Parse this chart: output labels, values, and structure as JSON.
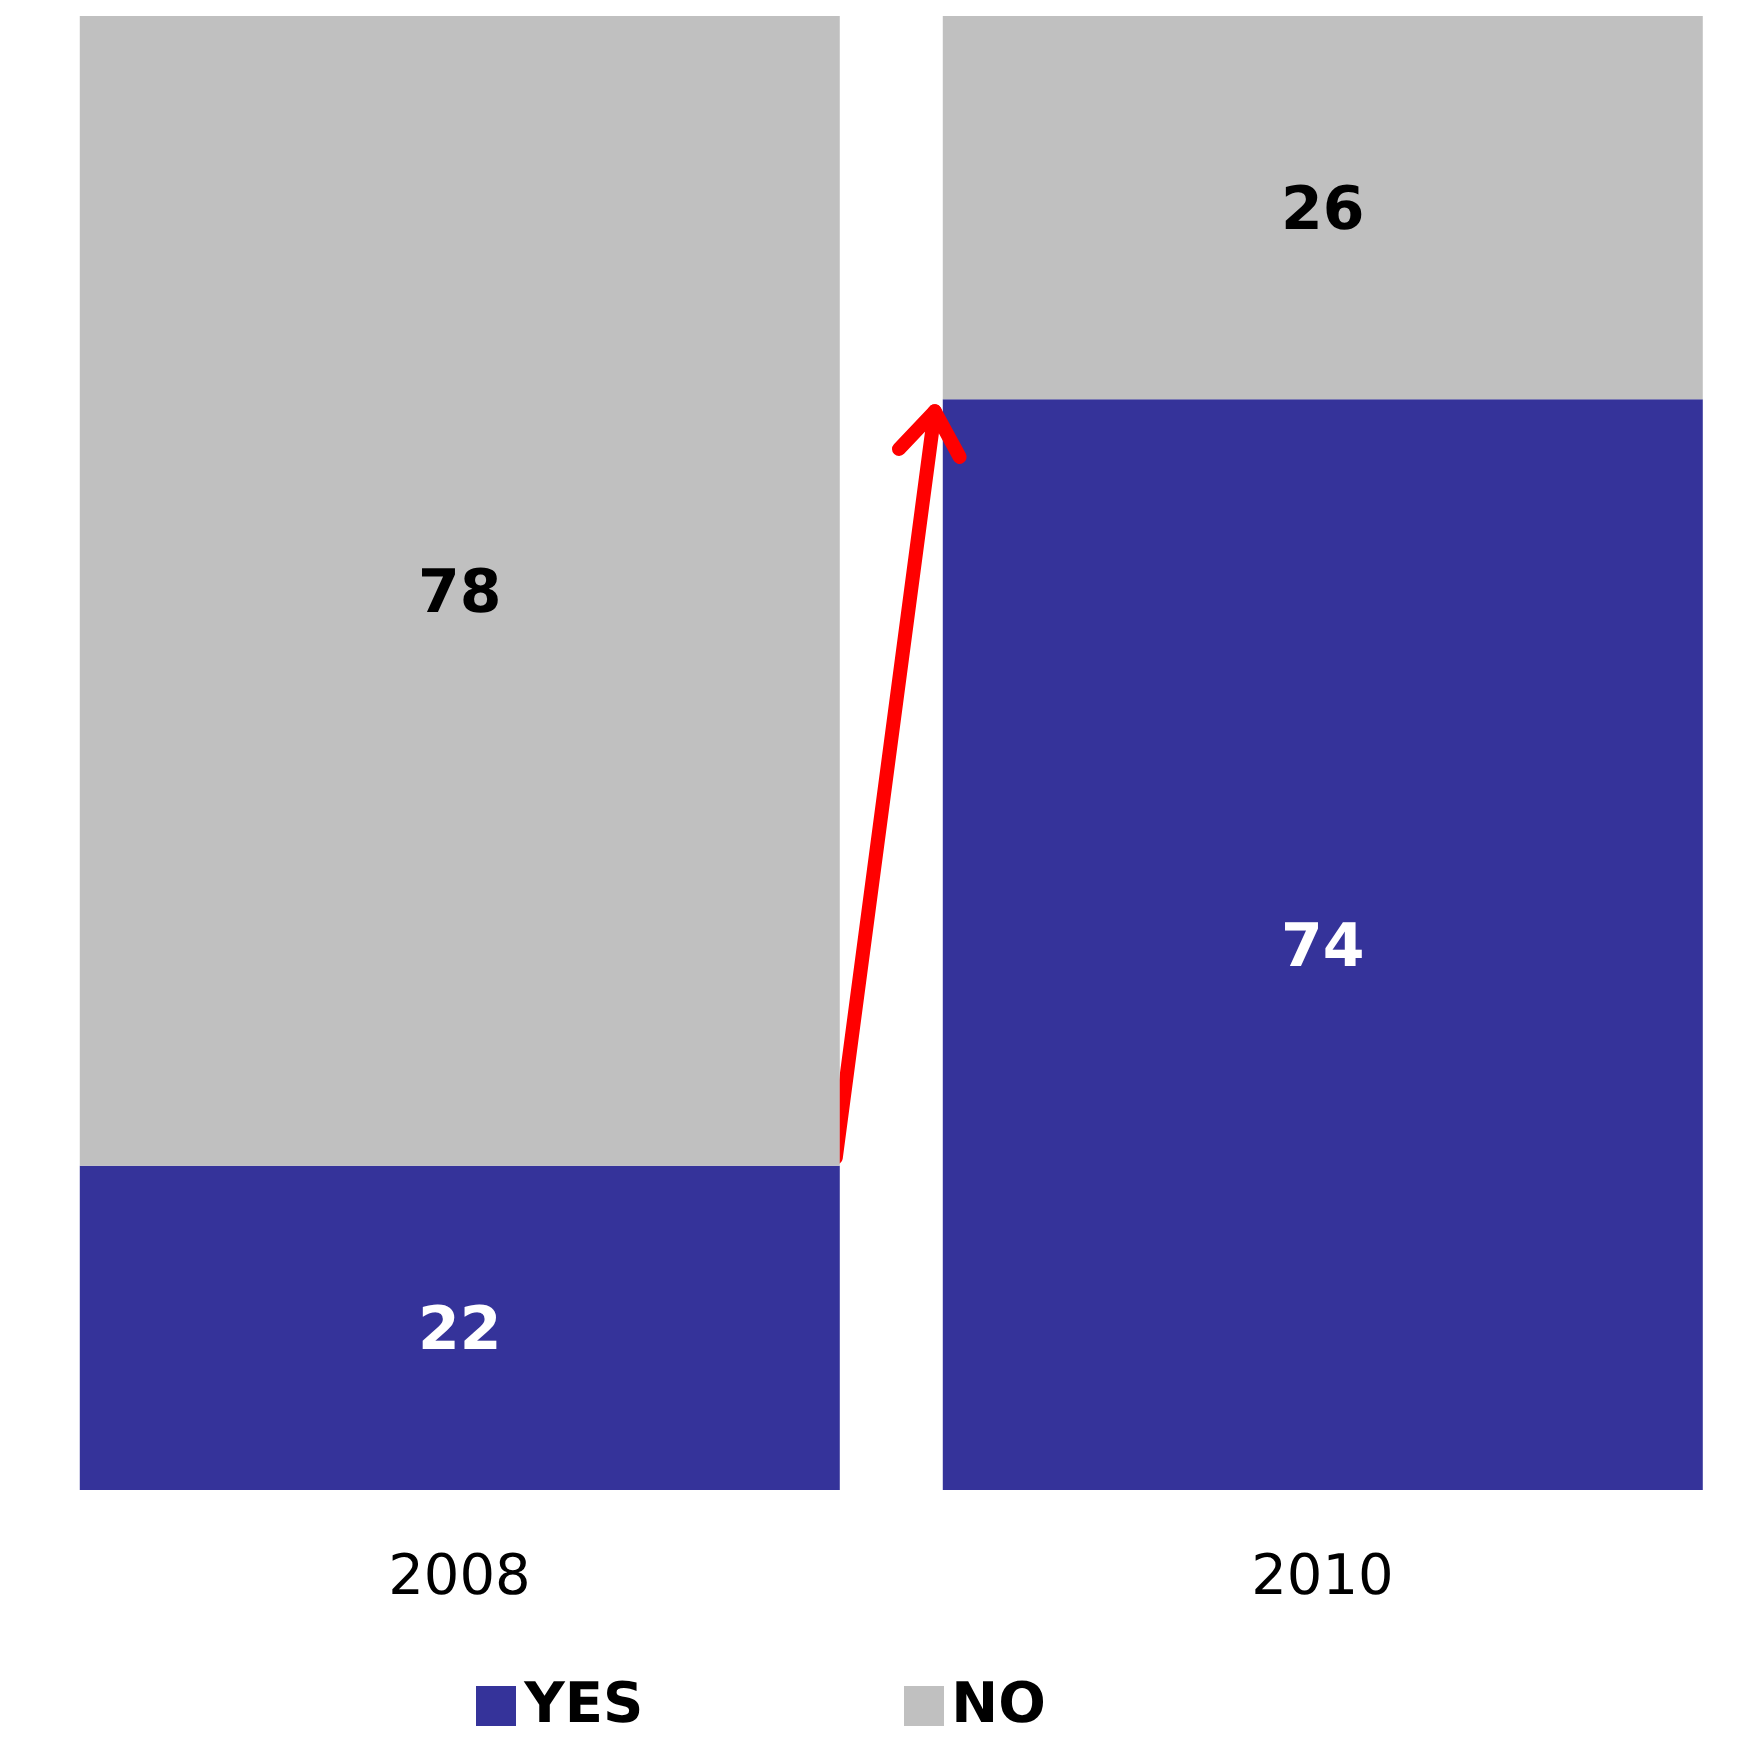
{
  "chart_data": {
    "type": "bar",
    "stacked": true,
    "categories": [
      "2008",
      "2010"
    ],
    "series": [
      {
        "name": "YES",
        "color": "#35339a",
        "values": [
          22,
          74
        ]
      },
      {
        "name": "NO",
        "color": "#c0c0c0",
        "values": [
          78,
          26
        ]
      }
    ],
    "data_labels": true,
    "legend": "bottom"
  }
}
